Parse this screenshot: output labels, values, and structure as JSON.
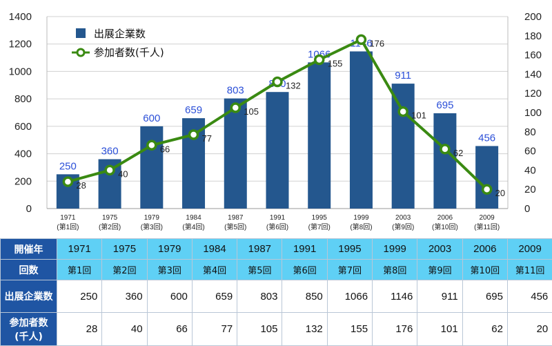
{
  "chart_data": {
    "type": "bar+line",
    "categories": [
      "1971",
      "1975",
      "1979",
      "1984",
      "1987",
      "1991",
      "1995",
      "1999",
      "2003",
      "2006",
      "2009"
    ],
    "category_sublabels": [
      "(第1回)",
      "(第2回)",
      "(第3回)",
      "(第4回)",
      "(第5回)",
      "(第6回)",
      "(第7回)",
      "(第8回)",
      "(第9回)",
      "(第10回)",
      "(第11回)"
    ],
    "series": [
      {
        "name": "出展企業数",
        "type": "bar",
        "axis": "left",
        "color": "#24578e",
        "values": [
          250,
          360,
          600,
          659,
          803,
          850,
          1066,
          1146,
          911,
          695,
          456
        ]
      },
      {
        "name": "参加者数(千人)",
        "type": "line",
        "axis": "right",
        "color": "#3a8a12",
        "values": [
          28,
          40,
          66,
          77,
          105,
          132,
          155,
          176,
          101,
          62,
          20
        ]
      }
    ],
    "y_left": {
      "min": 0,
      "max": 1400,
      "ticks": [
        0,
        200,
        400,
        600,
        800,
        1000,
        1200,
        1400
      ]
    },
    "y_right": {
      "min": 0,
      "max": 200,
      "ticks": [
        0,
        20,
        40,
        60,
        80,
        100,
        120,
        140,
        160,
        180,
        200
      ]
    },
    "legend_position": "top-left",
    "grid": "horizontal"
  },
  "table": {
    "headers": {
      "year": "開催年",
      "count": "回数",
      "exhibitors": "出展企業数",
      "visitors_line1": "参加者数",
      "visitors_line2": "(千人)"
    },
    "years": [
      "1971",
      "1975",
      "1979",
      "1984",
      "1987",
      "1991",
      "1995",
      "1999",
      "2003",
      "2006",
      "2009"
    ],
    "counts": [
      "第1回",
      "第2回",
      "第3回",
      "第4回",
      "第5回",
      "第6回",
      "第7回",
      "第8回",
      "第9回",
      "第10回",
      "第11回"
    ],
    "exhibitors": [
      250,
      360,
      600,
      659,
      803,
      850,
      1066,
      1146,
      911,
      695,
      456
    ],
    "visitors": [
      28,
      40,
      66,
      77,
      105,
      132,
      155,
      176,
      101,
      62,
      20
    ]
  }
}
